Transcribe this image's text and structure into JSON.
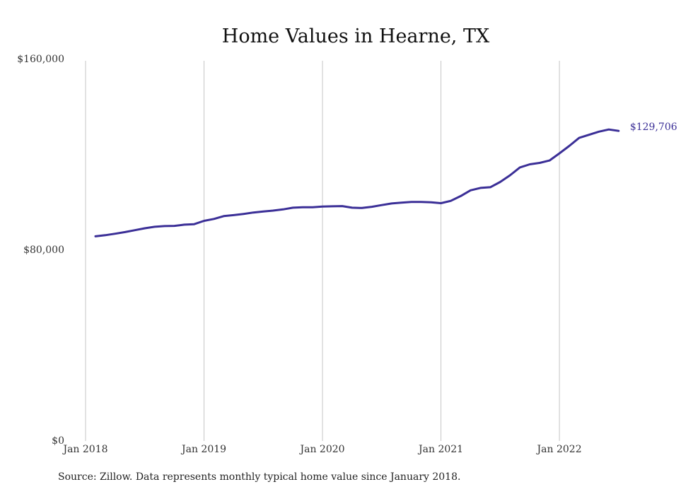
{
  "chart_data": {
    "type": "line",
    "title": "Home Values in Hearne, TX",
    "xlabel": "",
    "ylabel": "",
    "ylim": [
      0,
      160000
    ],
    "y_ticks": [
      {
        "value": 0,
        "label": "$0"
      },
      {
        "value": 80000,
        "label": "$80,000"
      },
      {
        "value": 160000,
        "label": "$160,000"
      }
    ],
    "x_ticks": [
      {
        "value": 0,
        "label": "Jan 2018"
      },
      {
        "value": 12,
        "label": "Jan 2019"
      },
      {
        "value": 24,
        "label": "Jan 2020"
      },
      {
        "value": 36,
        "label": "Jan 2021"
      },
      {
        "value": 48,
        "label": "Jan 2022"
      }
    ],
    "grid": "vertical",
    "legend": "none",
    "line_color": "#3b2f97",
    "end_label": "$129,706",
    "series": [
      {
        "x": [
          1,
          2,
          3,
          4,
          5,
          6,
          7,
          8,
          9,
          10,
          11,
          12,
          13,
          14,
          15,
          16,
          17,
          18,
          19,
          20,
          21,
          22,
          23,
          24,
          25,
          26,
          27,
          28,
          29,
          30,
          31,
          32,
          33,
          34,
          35,
          36,
          37,
          38,
          39,
          40,
          41,
          42,
          43,
          44,
          45,
          46,
          47,
          48,
          49,
          50,
          51,
          52,
          53,
          54
        ],
        "values": [
          85500,
          86000,
          86600,
          87300,
          88100,
          88900,
          89500,
          89800,
          89900,
          90400,
          90600,
          92000,
          92800,
          94000,
          94400,
          94900,
          95500,
          95900,
          96300,
          96800,
          97500,
          97700,
          97700,
          98000,
          98100,
          98200,
          97500,
          97400,
          97900,
          98600,
          99300,
          99600,
          99900,
          99900,
          99800,
          99400,
          100400,
          102400,
          104800,
          105800,
          106100,
          108300,
          111100,
          114400,
          115700,
          116300,
          117300,
          120300,
          123400,
          126800,
          128100,
          129400,
          130300,
          129706
        ]
      }
    ]
  },
  "source_text": "Source: Zillow. Data represents monthly typical home value since January 2018."
}
